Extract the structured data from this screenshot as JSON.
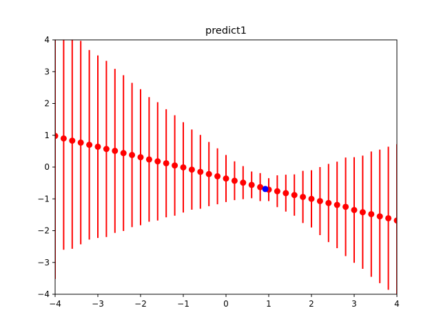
{
  "chart_data": {
    "type": "scatter",
    "title": "predict1",
    "xlabel": "",
    "ylabel": "",
    "xlim": [
      -4,
      4
    ],
    "ylim": [
      -4,
      4
    ],
    "xticks": [
      "−4",
      "−3",
      "−2",
      "−1",
      "0",
      "1",
      "2",
      "3",
      "4"
    ],
    "yticks": [
      "−4",
      "−3",
      "−2",
      "−1",
      "0",
      "1",
      "2",
      "3",
      "4"
    ],
    "grid": false,
    "series": [
      {
        "marker_color": "#ff0000",
        "errorbar_color": "#ff0000",
        "x": [
          -4.0,
          -3.8,
          -3.6,
          -3.4,
          -3.2,
          -3.0,
          -2.8,
          -2.6,
          -2.4,
          -2.2,
          -2.0,
          -1.8,
          -1.6,
          -1.4,
          -1.2,
          -1.0,
          -0.8,
          -0.6,
          -0.4,
          -0.2,
          0.0,
          0.2,
          0.4,
          0.6,
          0.8,
          1.0,
          1.2,
          1.4,
          1.6,
          1.8,
          2.0,
          2.2,
          2.4,
          2.6,
          2.8,
          3.0,
          3.2,
          3.4,
          3.6,
          3.8,
          4.0
        ],
        "y": [
          0.98,
          0.9,
          0.83,
          0.77,
          0.7,
          0.64,
          0.57,
          0.51,
          0.44,
          0.38,
          0.31,
          0.24,
          0.18,
          0.12,
          0.05,
          -0.01,
          -0.08,
          -0.15,
          -0.22,
          -0.29,
          -0.36,
          -0.43,
          -0.49,
          -0.56,
          -0.63,
          -0.71,
          -0.76,
          -0.82,
          -0.88,
          -0.94,
          -1.0,
          -1.07,
          -1.13,
          -1.19,
          -1.25,
          -1.35,
          -1.42,
          -1.48,
          -1.55,
          -1.61,
          -1.68
        ],
        "err": [
          4.5,
          3.5,
          3.4,
          3.2,
          2.98,
          2.87,
          2.77,
          2.58,
          2.45,
          2.27,
          2.14,
          1.96,
          1.86,
          1.7,
          1.58,
          1.42,
          1.26,
          1.16,
          1.01,
          0.88,
          0.74,
          0.61,
          0.52,
          0.42,
          0.44,
          0.36,
          0.5,
          0.58,
          0.65,
          0.82,
          0.9,
          1.07,
          1.23,
          1.36,
          1.55,
          1.66,
          1.78,
          1.97,
          2.1,
          2.25,
          2.4
        ]
      },
      {
        "marker_color": "#0000ff",
        "x": [
          0.92
        ],
        "y": [
          -0.69
        ]
      }
    ]
  }
}
